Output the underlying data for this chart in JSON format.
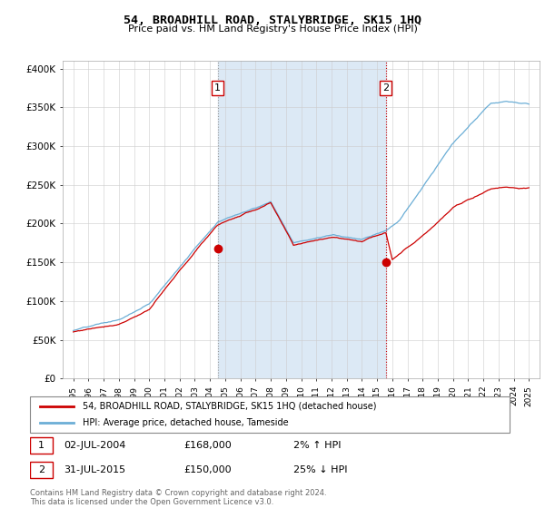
{
  "title": "54, BROADHILL ROAD, STALYBRIDGE, SK15 1HQ",
  "subtitle": "Price paid vs. HM Land Registry's House Price Index (HPI)",
  "legend_line1": "54, BROADHILL ROAD, STALYBRIDGE, SK15 1HQ (detached house)",
  "legend_line2": "HPI: Average price, detached house, Tameside",
  "annotation1_date": "02-JUL-2004",
  "annotation1_price": "£168,000",
  "annotation1_pct": "2% ↑ HPI",
  "annotation2_date": "31-JUL-2015",
  "annotation2_price": "£150,000",
  "annotation2_pct": "25% ↓ HPI",
  "label1": "1",
  "label2": "2",
  "footer": "Contains HM Land Registry data © Crown copyright and database right 2024.\nThis data is licensed under the Open Government Licence v3.0.",
  "hpi_color": "#6baed6",
  "price_color": "#cc0000",
  "span_color": "#dce9f5",
  "grid_color": "#cccccc",
  "vline1_color": "#999999",
  "vline2_color": "#cc0000",
  "marker_color": "#cc0000",
  "ylim": [
    0,
    410000
  ],
  "yticks": [
    0,
    50000,
    100000,
    150000,
    200000,
    250000,
    300000,
    350000,
    400000
  ],
  "ytick_labels": [
    "£0",
    "£50K",
    "£100K",
    "£150K",
    "£200K",
    "£250K",
    "£300K",
    "£350K",
    "£400K"
  ],
  "sale1_year": 2004.5,
  "sale1_price": 168000,
  "sale2_year": 2015.58,
  "sale2_price": 150000,
  "xlim_left": 1994.3,
  "xlim_right": 2025.7
}
